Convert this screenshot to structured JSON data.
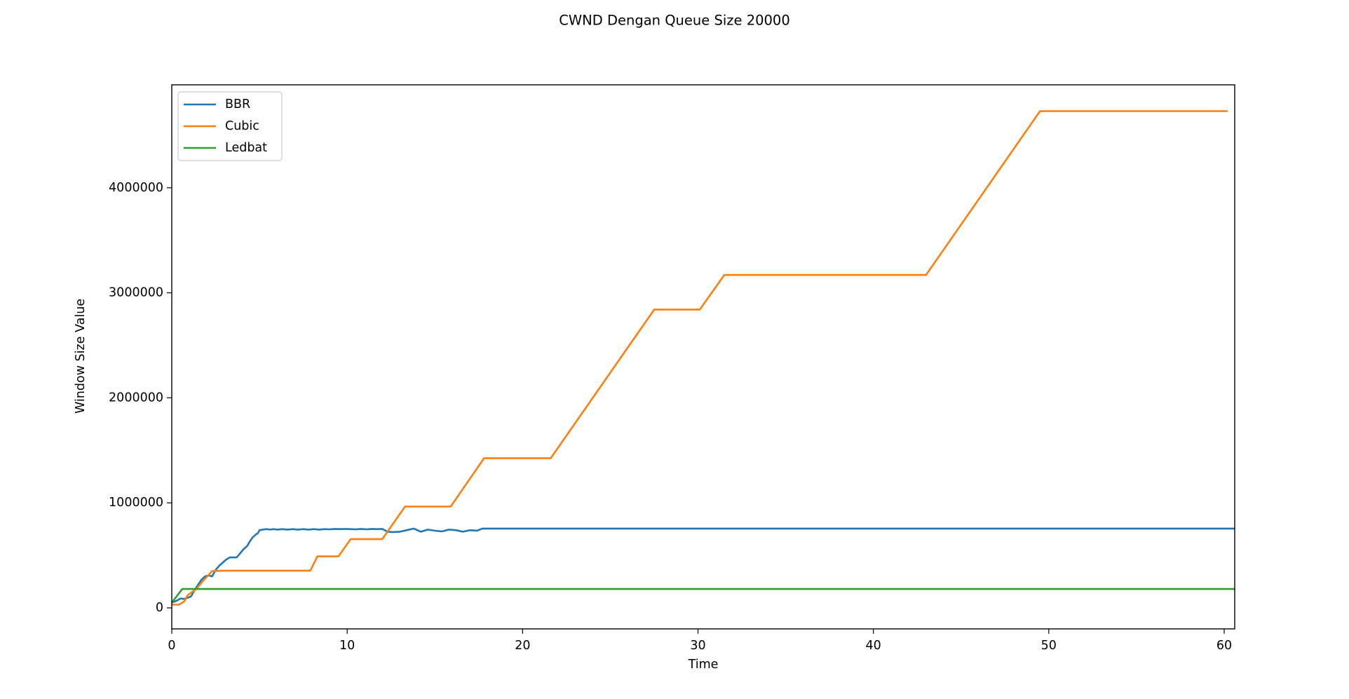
{
  "chart_data": {
    "type": "line",
    "title": "CWND Dengan Queue Size 20000",
    "xlabel": "Time",
    "ylabel": "Window Size Value",
    "xlim": [
      0,
      60.6
    ],
    "ylim": [
      -200000,
      4980000
    ],
    "xticks": [
      0,
      10,
      20,
      30,
      40,
      50,
      60
    ],
    "xtick_labels": [
      "0",
      "10",
      "20",
      "30",
      "40",
      "50",
      "60"
    ],
    "yticks": [
      0,
      1000000,
      2000000,
      3000000,
      4000000
    ],
    "ytick_labels": [
      "0",
      "1000000",
      "2000000",
      "3000000",
      "4000000"
    ],
    "grid": false,
    "legend_position": "top-left",
    "series": [
      {
        "name": "BBR",
        "color": "#1f77b4",
        "x": [
          0,
          0.3,
          0.5,
          0.7,
          0.9,
          1.1,
          1.3,
          1.5,
          1.7,
          1.9,
          2.1,
          2.3,
          2.5,
          2.7,
          2.9,
          3.1,
          3.3,
          3.5,
          3.7,
          3.9,
          4.1,
          4.3,
          4.4,
          4.6,
          4.8,
          4.9,
          5.0,
          5.2,
          5.4,
          5.6,
          5.8,
          6.0,
          6.3,
          6.6,
          6.9,
          7.2,
          7.5,
          7.8,
          8.1,
          8.4,
          8.7,
          9.0,
          9.3,
          9.6,
          9.9,
          10.2,
          10.5,
          10.8,
          11.1,
          11.4,
          11.7,
          12.0,
          12.3,
          12.6,
          13.0,
          13.4,
          13.8,
          14.2,
          14.6,
          15.0,
          15.4,
          15.8,
          16.2,
          16.6,
          17.0,
          17.4,
          17.7,
          20,
          30,
          40,
          50,
          60.6
        ],
        "y": [
          50000,
          70000,
          90000,
          85000,
          95000,
          110000,
          170000,
          220000,
          270000,
          300000,
          310000,
          300000,
          360000,
          400000,
          430000,
          460000,
          480000,
          480000,
          480000,
          520000,
          560000,
          590000,
          620000,
          670000,
          700000,
          710000,
          740000,
          745000,
          750000,
          745000,
          750000,
          745000,
          750000,
          745000,
          750000,
          745000,
          750000,
          745000,
          750000,
          745000,
          750000,
          748000,
          752000,
          750000,
          752000,
          750000,
          748000,
          752000,
          748000,
          752000,
          750000,
          752000,
          725000,
          722000,
          725000,
          740000,
          755000,
          725000,
          745000,
          735000,
          728000,
          745000,
          740000,
          725000,
          740000,
          735000,
          755000,
          755000,
          755000,
          755000,
          755000,
          755000
        ]
      },
      {
        "name": "Cubic",
        "color": "#ff7f0e",
        "x": [
          0,
          0.4,
          0.7,
          0.9,
          1.4,
          1.8,
          2.3,
          3.0,
          5.0,
          7.9,
          8.3,
          9.5,
          10.2,
          12.0,
          13.3,
          15.9,
          17.8,
          21.6,
          27.5,
          30.1,
          31.5,
          43.0,
          49.5,
          55.0,
          60.2
        ],
        "y": [
          30000,
          30000,
          60000,
          120000,
          180000,
          260000,
          350000,
          355000,
          355000,
          355000,
          490000,
          490000,
          655000,
          655000,
          965000,
          965000,
          1425000,
          1425000,
          2840000,
          2840000,
          3170000,
          3170000,
          4730000,
          4730000,
          4730000
        ]
      },
      {
        "name": "Ledbat",
        "color": "#2ca02c",
        "x": [
          0,
          0.6,
          1.0,
          60.6
        ],
        "y": [
          50000,
          180000,
          180000,
          180000
        ]
      }
    ]
  }
}
